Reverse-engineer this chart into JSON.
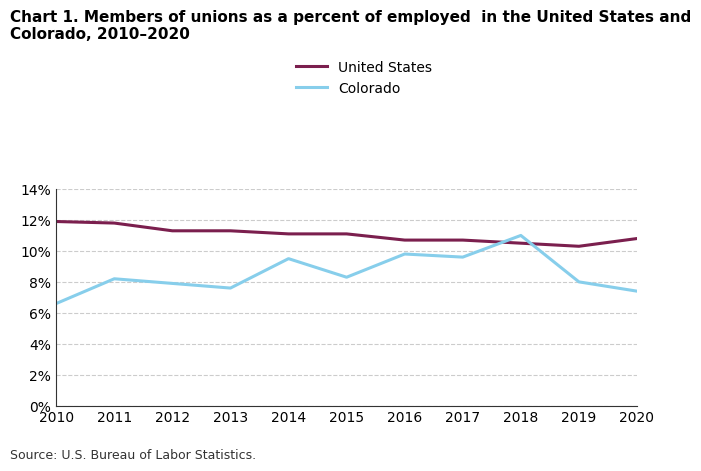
{
  "title_line1": "Chart 1. Members of unions as a percent of employed  in the United States and",
  "title_line2": "Colorado, 2010–2020",
  "years": [
    2010,
    2011,
    2012,
    2013,
    2014,
    2015,
    2016,
    2017,
    2018,
    2019,
    2020
  ],
  "us_values": [
    11.9,
    11.8,
    11.3,
    11.3,
    11.1,
    11.1,
    10.7,
    10.7,
    10.5,
    10.3,
    10.8
  ],
  "co_values": [
    6.6,
    8.2,
    7.9,
    7.6,
    9.5,
    8.3,
    9.8,
    9.6,
    11.0,
    8.0,
    7.4
  ],
  "us_color": "#7B1F4E",
  "co_color": "#87CEEB",
  "us_label": "United States",
  "co_label": "Colorado",
  "ylim": [
    0,
    14
  ],
  "yticks": [
    0,
    2,
    4,
    6,
    8,
    10,
    12,
    14
  ],
  "source_text": "Source: U.S. Bureau of Labor Statistics.",
  "background_color": "#ffffff",
  "grid_color": "#cccccc",
  "line_width": 2.2,
  "title_fontsize": 11,
  "legend_fontsize": 10,
  "tick_fontsize": 10,
  "source_fontsize": 9
}
